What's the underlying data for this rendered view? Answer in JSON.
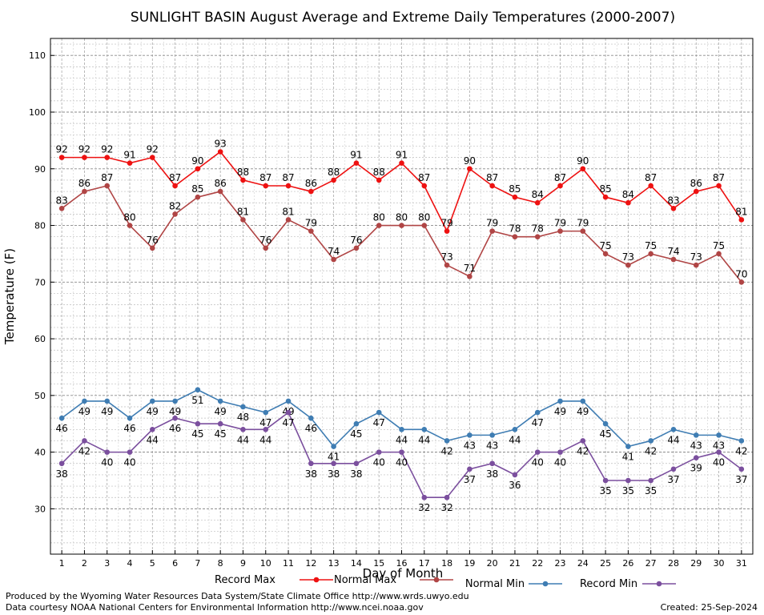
{
  "chart_data": {
    "type": "line",
    "title": "SUNLIGHT BASIN August Average and Extreme Daily Temperatures (2000-2007)",
    "xlabel": "Day of Month",
    "ylabel": "Temperature (F)",
    "xlim": [
      0.5,
      31.5
    ],
    "ylim": [
      22,
      113
    ],
    "x": [
      1,
      2,
      3,
      4,
      5,
      6,
      7,
      8,
      9,
      10,
      11,
      12,
      13,
      14,
      15,
      16,
      17,
      18,
      19,
      20,
      21,
      22,
      23,
      24,
      25,
      26,
      27,
      28,
      29,
      30,
      31
    ],
    "y_ticks": [
      30,
      40,
      50,
      60,
      70,
      80,
      90,
      100,
      110
    ],
    "grid": true,
    "legend_position": "bottom",
    "series": [
      {
        "name": "Record Max",
        "color": "#ee1111",
        "values": [
          92,
          92,
          92,
          91,
          92,
          87,
          90,
          93,
          88,
          87,
          87,
          86,
          88,
          91,
          88,
          91,
          87,
          79,
          90,
          87,
          85,
          84,
          87,
          90,
          85,
          84,
          87,
          83,
          86,
          87,
          81
        ]
      },
      {
        "name": "Normal Max",
        "color": "#b04545",
        "values": [
          83,
          86,
          87,
          80,
          76,
          82,
          85,
          86,
          81,
          76,
          81,
          79,
          74,
          76,
          80,
          80,
          80,
          73,
          71,
          79,
          78,
          78,
          79,
          79,
          75,
          73,
          75,
          74,
          73,
          75,
          70
        ]
      },
      {
        "name": "Normal Min",
        "color": "#3f7db3",
        "values": [
          46,
          49,
          49,
          46,
          49,
          49,
          51,
          49,
          48,
          47,
          49,
          46,
          41,
          45,
          47,
          44,
          44,
          42,
          43,
          43,
          44,
          47,
          49,
          49,
          45,
          41,
          42,
          44,
          43,
          43,
          42
        ]
      },
      {
        "name": "Record Min",
        "color": "#7b4f9e",
        "values": [
          38,
          42,
          40,
          40,
          44,
          46,
          45,
          45,
          44,
          44,
          47,
          38,
          38,
          38,
          40,
          40,
          32,
          32,
          37,
          38,
          36,
          40,
          40,
          42,
          35,
          35,
          35,
          37,
          39,
          40,
          37
        ]
      }
    ]
  },
  "footer": {
    "produced_by": "Produced by the Wyoming Water Resources Data System/State Climate Office http://www.wrds.uwyo.edu",
    "data_courtesy": "Data courtesy NOAA National Centers for Environmental Information http://www.ncei.noaa.gov",
    "created": "Created:  25-Sep-2024"
  }
}
